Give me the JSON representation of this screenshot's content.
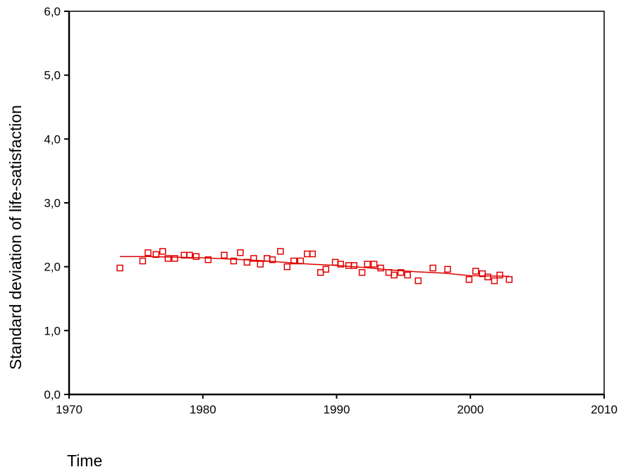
{
  "chart_data": {
    "type": "scatter",
    "title": "",
    "xlabel": "Time",
    "ylabel": "Standard deviation of life-satisfaction",
    "xlim": [
      1970,
      2010
    ],
    "ylim": [
      0,
      6
    ],
    "x_ticks": [
      "1970",
      "1980",
      "1990",
      "2000",
      "2010"
    ],
    "y_ticks": [
      "0,0",
      "1,0",
      "2,0",
      "3,0",
      "4,0",
      "5,0",
      "6,0"
    ],
    "grid": false,
    "legend": "none",
    "colors": {
      "points": "#e00000",
      "fit_line": "#e00000",
      "axes": "#000000"
    },
    "series": [
      {
        "marker": "hollow-square",
        "points": [
          [
            1973.8,
            1.98
          ],
          [
            1975.5,
            2.09
          ],
          [
            1975.9,
            2.22
          ],
          [
            1976.5,
            2.19
          ],
          [
            1977.0,
            2.24
          ],
          [
            1977.4,
            2.13
          ],
          [
            1977.9,
            2.13
          ],
          [
            1978.6,
            2.18
          ],
          [
            1979.0,
            2.18
          ],
          [
            1979.5,
            2.16
          ],
          [
            1980.4,
            2.11
          ],
          [
            1981.6,
            2.18
          ],
          [
            1982.3,
            2.09
          ],
          [
            1982.8,
            2.22
          ],
          [
            1983.3,
            2.07
          ],
          [
            1983.8,
            2.13
          ],
          [
            1984.3,
            2.04
          ],
          [
            1984.8,
            2.13
          ],
          [
            1985.2,
            2.11
          ],
          [
            1985.8,
            2.24
          ],
          [
            1986.3,
            2.0
          ],
          [
            1986.8,
            2.09
          ],
          [
            1987.3,
            2.09
          ],
          [
            1987.8,
            2.2
          ],
          [
            1988.2,
            2.2
          ],
          [
            1988.8,
            1.91
          ],
          [
            1989.2,
            1.96
          ],
          [
            1989.9,
            2.07
          ],
          [
            1990.3,
            2.04
          ],
          [
            1990.9,
            2.02
          ],
          [
            1991.3,
            2.02
          ],
          [
            1991.9,
            1.91
          ],
          [
            1992.3,
            2.04
          ],
          [
            1992.8,
            2.04
          ],
          [
            1993.3,
            1.98
          ],
          [
            1993.9,
            1.91
          ],
          [
            1994.3,
            1.87
          ],
          [
            1994.8,
            1.91
          ],
          [
            1995.3,
            1.87
          ],
          [
            1996.1,
            1.78
          ],
          [
            1997.2,
            1.98
          ],
          [
            1998.3,
            1.96
          ],
          [
            1999.9,
            1.8
          ],
          [
            2000.4,
            1.93
          ],
          [
            2000.9,
            1.89
          ],
          [
            2001.3,
            1.84
          ],
          [
            2001.8,
            1.78
          ],
          [
            2002.2,
            1.87
          ],
          [
            2002.9,
            1.8
          ]
        ]
      }
    ],
    "fit_line": [
      [
        1973.8,
        2.16
      ],
      [
        1976.0,
        2.16
      ],
      [
        1978.0,
        2.15
      ],
      [
        1980.0,
        2.14
      ],
      [
        1982.0,
        2.12
      ],
      [
        1984.0,
        2.1
      ],
      [
        1986.0,
        2.07
      ],
      [
        1988.0,
        2.04
      ],
      [
        1990.0,
        2.02
      ],
      [
        1992.0,
        1.99
      ],
      [
        1994.0,
        1.95
      ],
      [
        1996.0,
        1.92
      ],
      [
        1998.0,
        1.9
      ],
      [
        2000.0,
        1.86
      ],
      [
        2002.9,
        1.85
      ]
    ]
  }
}
